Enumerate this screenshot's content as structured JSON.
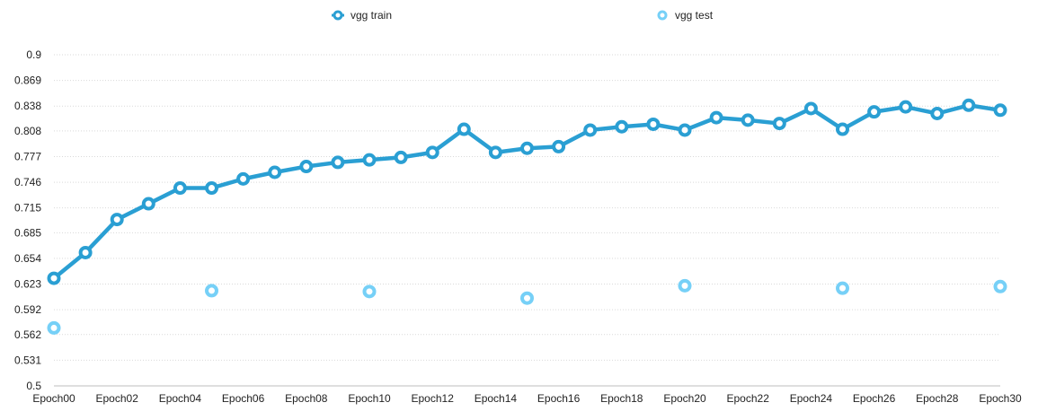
{
  "chart_data": {
    "type": "line",
    "title": "",
    "xlabel": "",
    "ylabel": "",
    "ylim": [
      0.5,
      0.9
    ],
    "yticks": [
      "0.5",
      "0.531",
      "0.562",
      "0.592",
      "0.623",
      "0.654",
      "0.685",
      "0.715",
      "0.746",
      "0.777",
      "0.808",
      "0.838",
      "0.869",
      "0.9"
    ],
    "x": [
      "Epoch00",
      "Epoch01",
      "Epoch02",
      "Epoch03",
      "Epoch04",
      "Epoch05",
      "Epoch06",
      "Epoch07",
      "Epoch08",
      "Epoch09",
      "Epoch10",
      "Epoch11",
      "Epoch12",
      "Epoch13",
      "Epoch14",
      "Epoch15",
      "Epoch16",
      "Epoch17",
      "Epoch18",
      "Epoch19",
      "Epoch20",
      "Epoch21",
      "Epoch22",
      "Epoch23",
      "Epoch24",
      "Epoch25",
      "Epoch26",
      "Epoch27",
      "Epoch28",
      "Epoch29",
      "Epoch30"
    ],
    "xticks": [
      "Epoch00",
      "Epoch02",
      "Epoch04",
      "Epoch06",
      "Epoch08",
      "Epoch10",
      "Epoch12",
      "Epoch14",
      "Epoch16",
      "Epoch18",
      "Epoch20",
      "Epoch22",
      "Epoch24",
      "Epoch26",
      "Epoch28",
      "Epoch30"
    ],
    "grid": true,
    "legend_position": "top",
    "series": [
      {
        "name": "vgg train",
        "color": "#2a9fd3",
        "line": true,
        "values": [
          0.63,
          0.661,
          0.701,
          0.72,
          0.739,
          0.739,
          0.75,
          0.758,
          0.765,
          0.77,
          0.773,
          0.776,
          0.782,
          0.81,
          0.782,
          0.787,
          0.789,
          0.809,
          0.813,
          0.816,
          0.809,
          0.824,
          0.821,
          0.817,
          0.835,
          0.81,
          0.831,
          0.837,
          0.829,
          0.839,
          0.833
        ]
      },
      {
        "name": "vgg test",
        "color": "#76d0f7",
        "line": false,
        "values": [
          0.57,
          null,
          null,
          null,
          null,
          0.615,
          null,
          null,
          null,
          null,
          0.614,
          null,
          null,
          null,
          null,
          0.606,
          null,
          null,
          null,
          null,
          0.621,
          null,
          null,
          null,
          null,
          0.618,
          null,
          null,
          null,
          null,
          0.62
        ]
      }
    ]
  }
}
